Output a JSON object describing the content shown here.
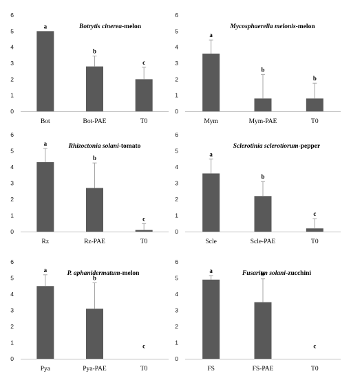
{
  "chart_data": [
    {
      "type": "bar",
      "title_italic": "Botrytis cinerea",
      "title_rest": "-melon",
      "categories": [
        "Bot",
        "Bot-PAE",
        "T0"
      ],
      "values": [
        5.0,
        2.8,
        2.0
      ],
      "errors": [
        0,
        0.65,
        0.75
      ],
      "letters": [
        "a",
        "b",
        "c"
      ],
      "ylim": [
        0,
        6
      ],
      "yticks": [
        "0",
        "1",
        "2",
        "3",
        "4",
        "5",
        "6"
      ]
    },
    {
      "type": "bar",
      "title_italic": "Mycosphaerella melonis",
      "title_rest": "-melon",
      "categories": [
        "Mym",
        "Mym-PAE",
        "T0"
      ],
      "values": [
        3.6,
        0.8,
        0.8
      ],
      "errors": [
        0.85,
        1.5,
        0.95
      ],
      "letters": [
        "a",
        "b",
        "b"
      ],
      "ylim": [
        0,
        6
      ],
      "yticks": [
        "0",
        "1",
        "2",
        "3",
        "4",
        "5",
        "6"
      ]
    },
    {
      "type": "bar",
      "title_italic": "Rhizoctonia solani",
      "title_rest": "-tomato",
      "categories": [
        "Rz",
        "Rz-PAE",
        "T0"
      ],
      "values": [
        4.3,
        2.7,
        0.1
      ],
      "errors": [
        0.85,
        1.55,
        0.4
      ],
      "letters": [
        "a",
        "b",
        "c"
      ],
      "ylim": [
        0,
        6
      ],
      "yticks": [
        "0",
        "1",
        "2",
        "3",
        "4",
        "5",
        "6"
      ]
    },
    {
      "type": "bar",
      "title_italic": "Sclerotinia sclerotiorum",
      "title_rest": "-pepper",
      "categories": [
        "Scle",
        "Scle-PAE",
        "T0"
      ],
      "values": [
        3.6,
        2.2,
        0.2
      ],
      "errors": [
        0.9,
        0.9,
        0.6
      ],
      "letters": [
        "a",
        "b",
        "c"
      ],
      "ylim": [
        0,
        6
      ],
      "yticks": [
        "0",
        "1",
        "2",
        "3",
        "4",
        "5",
        "6"
      ]
    },
    {
      "type": "bar",
      "title_italic": "P. aphanidermatum",
      "title_rest": "-melon",
      "categories": [
        "Pya",
        "Pya-PAE",
        "T0"
      ],
      "values": [
        4.5,
        3.1,
        0
      ],
      "errors": [
        0.7,
        1.6,
        0
      ],
      "letters": [
        "a",
        "b",
        "c"
      ],
      "ylim": [
        0,
        6
      ],
      "yticks": [
        "0",
        "1",
        "2",
        "3",
        "4",
        "5",
        "6"
      ]
    },
    {
      "type": "bar",
      "title_italic": "Fusariun solani",
      "title_rest": "-zucchini",
      "categories": [
        "FS",
        "FS-PAE",
        "T0"
      ],
      "values": [
        4.9,
        3.5,
        0
      ],
      "errors": [
        0.25,
        1.45,
        0
      ],
      "letters": [
        "a",
        "b",
        "c"
      ],
      "ylim": [
        0,
        6
      ],
      "yticks": [
        "0",
        "1",
        "2",
        "3",
        "4",
        "5",
        "6"
      ]
    }
  ],
  "colors": {
    "bar": "#595959",
    "axis": "#bfbfbf",
    "error": "#a6a6a6"
  }
}
